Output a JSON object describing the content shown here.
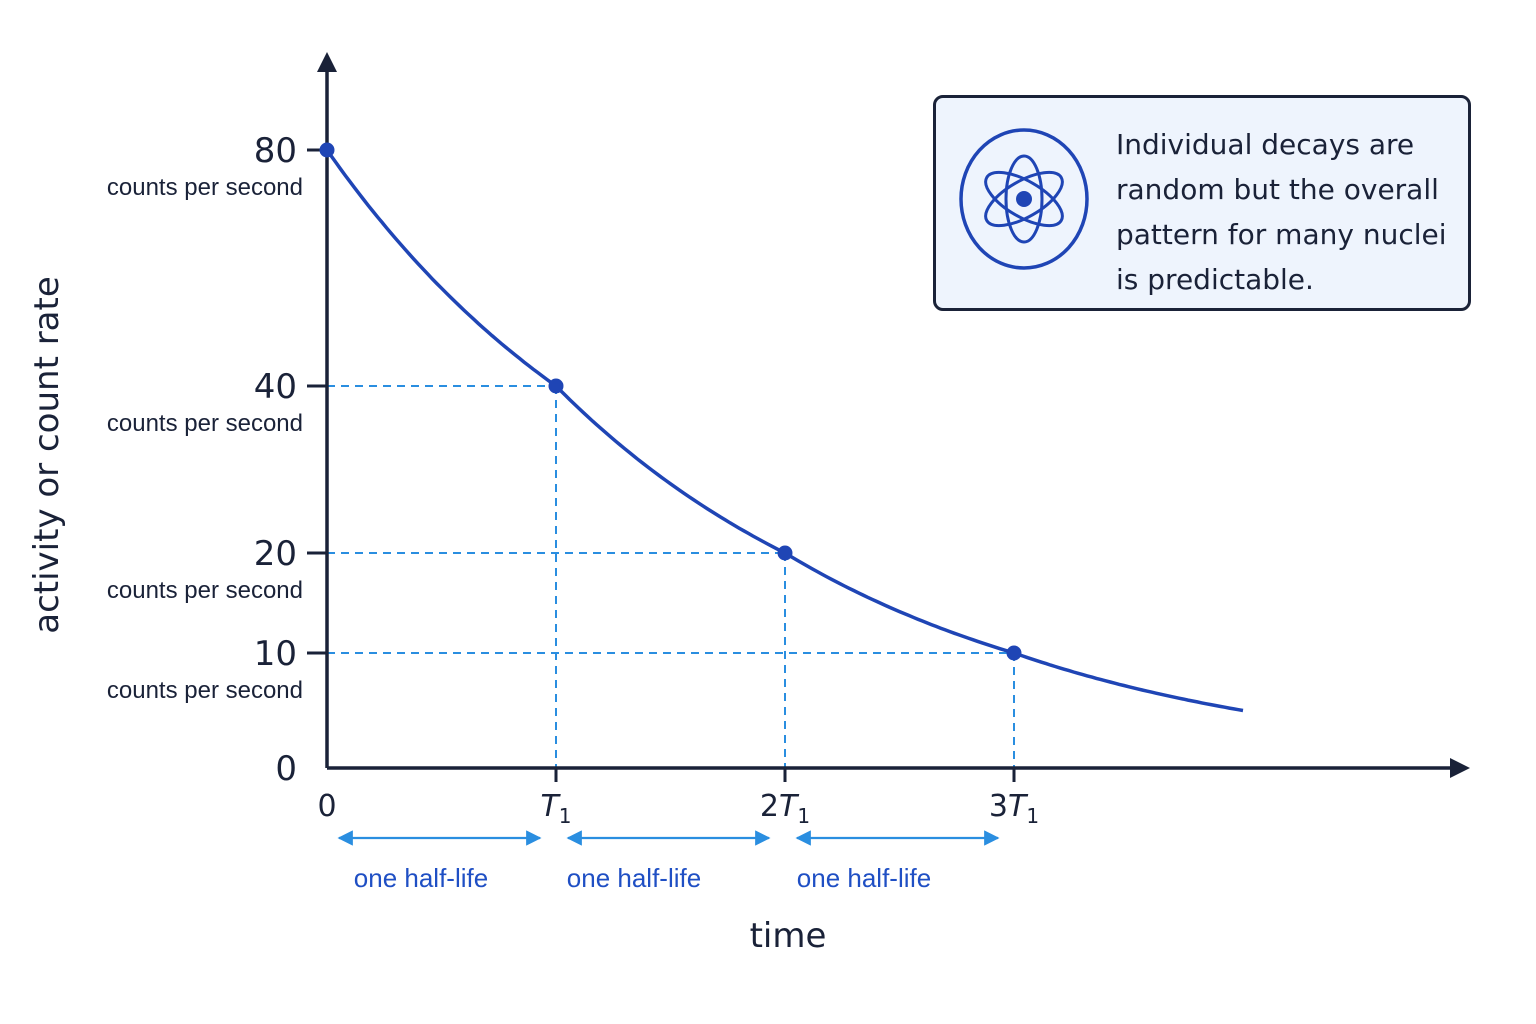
{
  "chart_data": {
    "type": "line",
    "ylabel": "activity or count rate",
    "xlabel": "time",
    "x_tick_labels": [
      {
        "main": "0",
        "sub": ""
      },
      {
        "main": "T",
        "sub": "1",
        "prefix": ""
      },
      {
        "main": "T",
        "sub": "1",
        "prefix": "2"
      },
      {
        "main": "T",
        "sub": "1",
        "prefix": "3"
      }
    ],
    "y_ticks": [
      {
        "value": 80,
        "label": "80",
        "unit": "counts per second"
      },
      {
        "value": 40,
        "label": "40",
        "unit": "counts per second"
      },
      {
        "value": 20,
        "label": "20",
        "unit": "counts per second"
      },
      {
        "value": 10,
        "label": "10",
        "unit": "counts per second"
      },
      {
        "value": 0,
        "label": "0",
        "unit": ""
      }
    ],
    "series": [
      {
        "x_half_lives": [
          0,
          1,
          2,
          3,
          4.0
        ],
        "values": [
          80,
          40,
          20,
          10,
          5
        ],
        "marked_points": [
          {
            "x_half_lives": 0,
            "value": 80
          },
          {
            "x_half_lives": 1,
            "value": 40
          },
          {
            "x_half_lives": 2,
            "value": 20
          },
          {
            "x_half_lives": 3,
            "value": 10
          }
        ]
      }
    ],
    "x_range_half_lives": [
      0,
      4.0
    ],
    "ylim": [
      0,
      80
    ],
    "grid": false,
    "half_life_spans": [
      {
        "from": 0,
        "to": 1,
        "label": "one half-life"
      },
      {
        "from": 1,
        "to": 2,
        "label": "one half-life"
      },
      {
        "from": 2,
        "to": 3,
        "label": "one half-life"
      }
    ],
    "colors": {
      "curve": "#1f45b5",
      "guides": "#2a8ee0",
      "span_arrows": "#2a8ee0",
      "span_text": "#1f4fc4",
      "axes": "#1a2238"
    }
  },
  "note": {
    "icon": "atom-icon",
    "text": "Individual decays are random but the overall pattern for many nuclei is predictable.",
    "lines": [
      "Individual decays are",
      "random but the overall",
      "pattern for many nuclei",
      "is predictable."
    ],
    "background": "#eef4fd",
    "border": "#1a2238"
  }
}
